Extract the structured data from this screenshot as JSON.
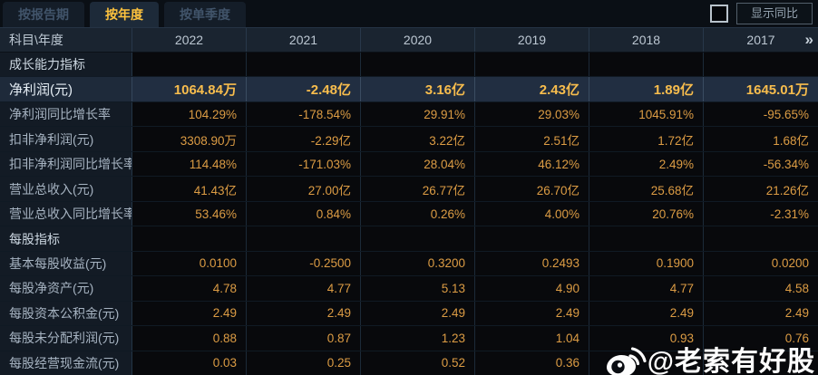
{
  "tabs": [
    {
      "name": "by-report-period",
      "label": "按报告期",
      "active": false
    },
    {
      "name": "by-year",
      "label": "按年度",
      "active": true
    },
    {
      "name": "by-single-quarter",
      "label": "按单季度",
      "active": false
    }
  ],
  "controls": {
    "show_yoy_label": "显示同比"
  },
  "table": {
    "corner_header": "科目\\年度",
    "year_columns": [
      "2022",
      "2021",
      "2020",
      "2019",
      "2018",
      "2017"
    ],
    "more_icon": "»",
    "rows": [
      {
        "type": "section",
        "label": "成长能力指标",
        "values": [
          "",
          "",
          "",
          "",
          "",
          ""
        ]
      },
      {
        "type": "data",
        "highlight": true,
        "label": "净利润(元)",
        "values": [
          "1064.84万",
          "-2.48亿",
          "3.16亿",
          "2.43亿",
          "1.89亿",
          "1645.01万"
        ]
      },
      {
        "type": "data",
        "label": "净利润同比增长率",
        "values": [
          "104.29%",
          "-178.54%",
          "29.91%",
          "29.03%",
          "1045.91%",
          "-95.65%"
        ]
      },
      {
        "type": "data",
        "label": "扣非净利润(元)",
        "values": [
          "3308.90万",
          "-2.29亿",
          "3.22亿",
          "2.51亿",
          "1.72亿",
          "1.68亿"
        ]
      },
      {
        "type": "data",
        "label": "扣非净利润同比增长率",
        "values": [
          "114.48%",
          "-171.03%",
          "28.04%",
          "46.12%",
          "2.49%",
          "-56.34%"
        ]
      },
      {
        "type": "data",
        "label": "营业总收入(元)",
        "values": [
          "41.43亿",
          "27.00亿",
          "26.77亿",
          "26.70亿",
          "25.68亿",
          "21.26亿"
        ]
      },
      {
        "type": "data",
        "label": "营业总收入同比增长率",
        "values": [
          "53.46%",
          "0.84%",
          "0.26%",
          "4.00%",
          "20.76%",
          "-2.31%"
        ]
      },
      {
        "type": "section",
        "label": "每股指标",
        "values": [
          "",
          "",
          "",
          "",
          "",
          ""
        ]
      },
      {
        "type": "data",
        "label": "基本每股收益(元)",
        "values": [
          "0.0100",
          "-0.2500",
          "0.3200",
          "0.2493",
          "0.1900",
          "0.0200"
        ]
      },
      {
        "type": "data",
        "label": "每股净资产(元)",
        "values": [
          "4.78",
          "4.77",
          "5.13",
          "4.90",
          "4.77",
          "4.58"
        ]
      },
      {
        "type": "data",
        "label": "每股资本公积金(元)",
        "values": [
          "2.49",
          "2.49",
          "2.49",
          "2.49",
          "2.49",
          "2.49"
        ]
      },
      {
        "type": "data",
        "label": "每股未分配利润(元)",
        "values": [
          "0.88",
          "0.87",
          "1.23",
          "1.04",
          "0.93",
          "0.76"
        ]
      },
      {
        "type": "data",
        "label": "每股经营现金流(元)",
        "values": [
          "0.03",
          "0.25",
          "0.52",
          "0.36",
          "",
          ""
        ]
      }
    ]
  },
  "watermark": {
    "text": "@老索有好股",
    "icon": "weibo-icon"
  },
  "colors": {
    "background": "#0a0d12",
    "tab_active_text": "#fdc23e",
    "tab_inactive_text": "#41546a",
    "header_row_bg": "#1a2430",
    "label_cell_bg": "#131b25",
    "value_cell_bg": "#08090c",
    "highlight_row_bg": "#212e41",
    "value_text": "#dc9c44",
    "highlight_value_text": "#f8bd4d",
    "label_text": "#a6b3c1",
    "watermark_text": "#fdfdfd"
  }
}
